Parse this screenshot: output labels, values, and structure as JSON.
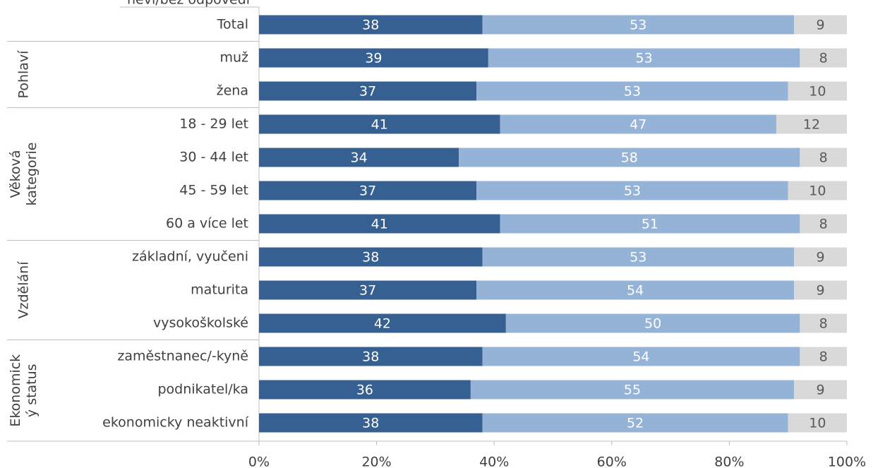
{
  "chart_data": {
    "type": "stacked_bar_horizontal",
    "categories": [
      "Total",
      "muž",
      "žena",
      "18 - 29 let",
      "30 - 44 let",
      "45 - 59 let",
      "60 a více let",
      "základní, vyučeni",
      "maturita",
      "vysokoškolské",
      "zaměstnanec/-kyně",
      "podnikatel/ka",
      "ekonomicky neaktivní"
    ],
    "groups": [
      {
        "label": [
          "Pohlaví"
        ],
        "span": 2
      },
      {
        "label": [
          "Věková",
          "kategorie"
        ],
        "span": 4
      },
      {
        "label": [
          "Vzdělání"
        ],
        "span": 3
      },
      {
        "label": [
          "Ekonomick",
          "ý status"
        ],
        "span": 3
      }
    ],
    "series": [
      {
        "color": "#376092",
        "label_color": "#ffffff",
        "values": [
          38,
          39,
          37,
          41,
          34,
          37,
          41,
          38,
          37,
          42,
          38,
          36,
          38
        ]
      },
      {
        "color": "#95b3d7",
        "label_color": "#ffffff",
        "values": [
          53,
          53,
          53,
          47,
          58,
          53,
          51,
          53,
          54,
          50,
          54,
          55,
          52
        ]
      },
      {
        "name": "neví/bez odpovědi",
        "color": "#d9d9d9",
        "label_color": "#595959",
        "values": [
          9,
          8,
          10,
          12,
          8,
          10,
          8,
          9,
          9,
          8,
          8,
          9,
          10
        ]
      }
    ],
    "xlim": [
      0,
      100
    ],
    "xticks": [
      {
        "value": 0,
        "label": "0%"
      },
      {
        "value": 20,
        "label": "20%"
      },
      {
        "value": 40,
        "label": "40%"
      },
      {
        "value": 60,
        "label": "60%"
      },
      {
        "value": 80,
        "label": "80%"
      },
      {
        "value": 100,
        "label": "100%"
      }
    ]
  }
}
